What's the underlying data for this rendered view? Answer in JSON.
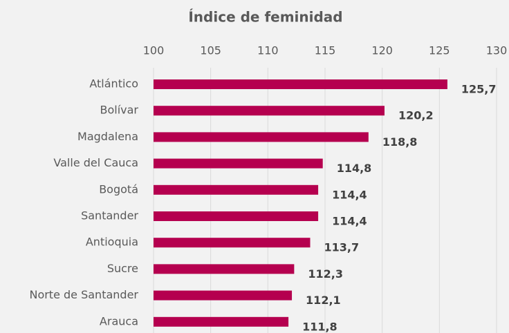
{
  "chart_data": {
    "type": "bar",
    "orientation": "horizontal",
    "title": "Índice de feminidad",
    "categories": [
      "Atlántico",
      "Bolívar",
      "Magdalena",
      "Valle del Cauca",
      "Bogotá",
      "Santander",
      "Antioquia",
      "Sucre",
      "Norte de Santander",
      "Arauca"
    ],
    "values": [
      125.7,
      120.2,
      118.8,
      114.8,
      114.4,
      114.4,
      113.7,
      112.3,
      112.1,
      111.8
    ],
    "value_labels": [
      "125,7",
      "120,2",
      "118,8",
      "114,8",
      "114,4",
      "114,4",
      "113,7",
      "112,3",
      "112,1",
      "111,8"
    ],
    "color": "#b5004f",
    "xlim": [
      100,
      130
    ],
    "xticks": [
      100,
      105,
      110,
      115,
      120,
      125,
      130
    ],
    "grid": true
  }
}
